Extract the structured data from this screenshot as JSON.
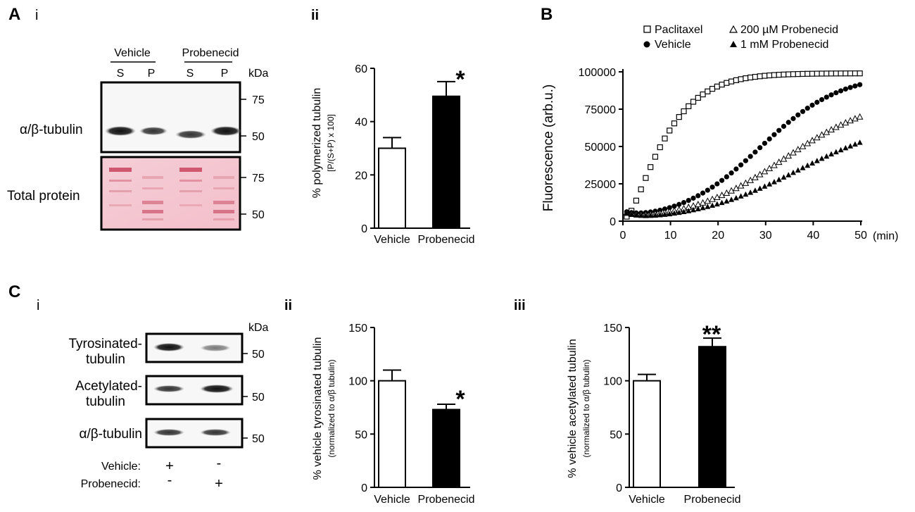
{
  "panels": {
    "A": {
      "letter": "A",
      "i": {
        "label": "i",
        "groups": [
          "Vehicle",
          "Probenecid"
        ],
        "lanes": [
          "S",
          "P",
          "S",
          "P"
        ],
        "kda": "kDa",
        "blot1_name": "α/β-tubulin",
        "blot1_markers": [
          "75",
          "50"
        ],
        "blot2_name": "Total protein",
        "blot2_markers": [
          "75",
          "50"
        ]
      },
      "ii": {
        "label": "ii",
        "ylabel": "% polymerized tubulin",
        "ylabel2": "[P/(S+P) x 100]",
        "sig": "*"
      }
    },
    "B": {
      "letter": "B",
      "legend": [
        "Paclitaxel",
        "200 µM Probenecid",
        "Vehicle",
        "1 mM Probenecid"
      ],
      "ylabel": "Fluorescence (arb.u.)",
      "xunit": "(min)"
    },
    "C": {
      "letter": "C",
      "i": {
        "label": "i",
        "kda": "kDa",
        "blots": [
          {
            "name1": "Tyrosinated-",
            "name2": "tubulin",
            "marker": "50"
          },
          {
            "name1": "Acetylated-",
            "name2": "tubulin",
            "marker": "50"
          },
          {
            "name1": "α/β-tubulin",
            "name2": "",
            "marker": "50"
          }
        ],
        "rows": [
          {
            "name": "Vehicle:",
            "signs": [
              "+",
              "-"
            ]
          },
          {
            "name": "Probenecid:",
            "signs": [
              "-",
              "+"
            ]
          }
        ]
      },
      "ii": {
        "label": "ii",
        "ylabel": "% vehicle tyrosinated tubulin",
        "ylabel2": "(normalized to α/β tubulin)",
        "sig": "*"
      },
      "iii": {
        "label": "iii",
        "ylabel": "% vehicle acetylated tubulin",
        "ylabel2": "(normalized to α/β tubulin)",
        "sig": "**"
      }
    }
  },
  "chart_data": [
    {
      "id": "A-ii",
      "type": "bar",
      "categories": [
        "Vehicle",
        "Probenecid"
      ],
      "values": [
        30,
        49.5
      ],
      "errors": [
        4,
        5.5
      ],
      "fills": [
        "#ffffff",
        "#000000"
      ],
      "ylim": [
        0,
        60
      ],
      "yticks": [
        0,
        20,
        40,
        60
      ],
      "ylabel": "% polymerized tubulin [P/(S+P) x 100]"
    },
    {
      "id": "B",
      "type": "scatter",
      "xlim": [
        0,
        50
      ],
      "ylim": [
        0,
        100000
      ],
      "xticks": [
        0,
        10,
        20,
        30,
        40,
        50
      ],
      "yticks": [
        0,
        25000,
        50000,
        75000,
        100000
      ],
      "xlabel": "(min)",
      "ylabel": "Fluorescence (arb.u.)",
      "series": [
        {
          "name": "Paclitaxel",
          "marker": "open-square",
          "params": {
            "k": "sat",
            "top": 99000,
            "t50": 7,
            "w": 4.5
          }
        },
        {
          "name": "Vehicle",
          "marker": "filled-circle",
          "params": {
            "k": "sig",
            "top": 100000,
            "t50": 28,
            "w": 8.5
          }
        },
        {
          "name": "200 µM Probenecid",
          "marker": "open-triangle",
          "params": {
            "k": "sig",
            "top": 85000,
            "t50": 33,
            "w": 10
          }
        },
        {
          "name": "1 mM Probenecid",
          "marker": "filled-triangle",
          "params": {
            "k": "sig",
            "top": 70000,
            "t50": 36,
            "w": 11
          }
        }
      ],
      "x_values": "0 to 50 min every 1 min"
    },
    {
      "id": "C-ii",
      "type": "bar",
      "categories": [
        "Vehicle",
        "Probenecid"
      ],
      "values": [
        100,
        73
      ],
      "errors": [
        10,
        5
      ],
      "fills": [
        "#ffffff",
        "#000000"
      ],
      "ylim": [
        0,
        150
      ],
      "yticks": [
        0,
        50,
        100,
        150
      ],
      "ylabel": "% vehicle tyrosinated tubulin (normalized to α/β tubulin)"
    },
    {
      "id": "C-iii",
      "type": "bar",
      "categories": [
        "Vehicle",
        "Probenecid"
      ],
      "values": [
        100,
        132
      ],
      "errors": [
        6,
        8
      ],
      "fills": [
        "#ffffff",
        "#000000"
      ],
      "ylim": [
        0,
        150
      ],
      "yticks": [
        0,
        50,
        100,
        150
      ],
      "ylabel": "% vehicle acetylated tubulin (normalized to α/β tubulin)"
    }
  ]
}
